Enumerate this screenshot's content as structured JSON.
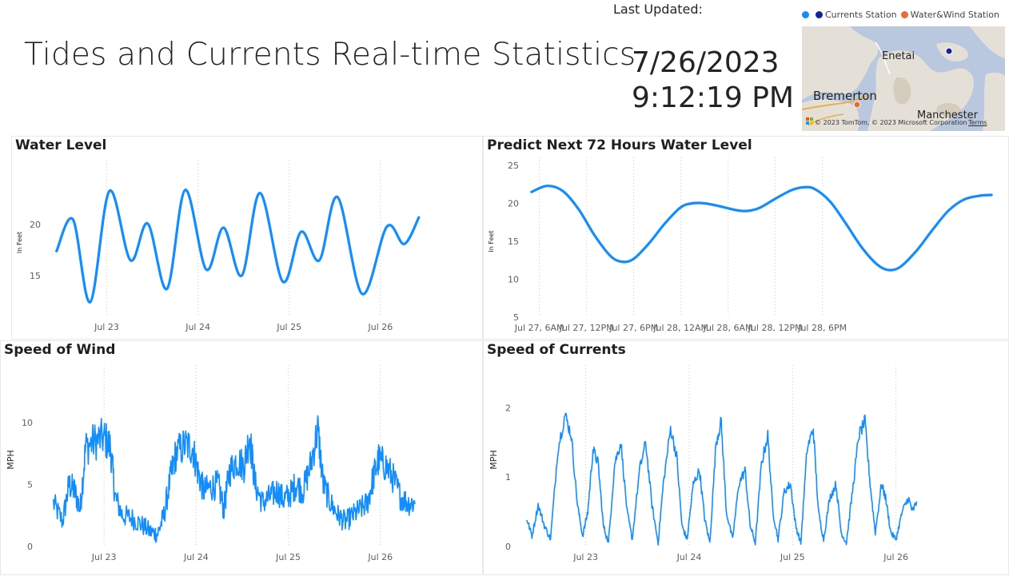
{
  "header": {
    "title": "Tides and Currents Real-time Statistics",
    "last_updated_label": "Last Updated:",
    "last_updated_date": "7/26/2023",
    "last_updated_time": "9:12:19 PM"
  },
  "map": {
    "legend": [
      {
        "label": "",
        "color": "#118dff"
      },
      {
        "label": "Currents Station",
        "color": "#12239e"
      },
      {
        "label": "Water&Wind Station",
        "color": "#e66c37"
      }
    ],
    "places": [
      "Enetai",
      "Bremerton",
      "Manchester"
    ],
    "copyright": "© 2023 TomTom, © 2023 Microsoft Corporation",
    "terms": "Terms"
  },
  "colors": {
    "series": "#118dff",
    "grid": "#c8c6c4"
  },
  "chart_data": [
    {
      "id": "water_level",
      "type": "line",
      "title": "Water Level",
      "ylabel": "In Feet",
      "ylim": [
        11,
        25.5
      ],
      "yticks": [
        15,
        20
      ],
      "xticks": [
        "Jul 23",
        "Jul 24",
        "Jul 25",
        "Jul 26"
      ],
      "x_range_days": [
        22.4,
        27.0
      ],
      "series": [
        {
          "values": [
            [
              22.45,
              17.4
            ],
            [
              22.63,
              20.5
            ],
            [
              22.82,
              12.4
            ],
            [
              23.03,
              23.3
            ],
            [
              23.26,
              16.5
            ],
            [
              23.45,
              20.1
            ],
            [
              23.66,
              13.7
            ],
            [
              23.86,
              23.4
            ],
            [
              24.09,
              15.6
            ],
            [
              24.28,
              19.7
            ],
            [
              24.48,
              15.0
            ],
            [
              24.68,
              23.1
            ],
            [
              24.93,
              14.4
            ],
            [
              25.13,
              19.3
            ],
            [
              25.33,
              16.5
            ],
            [
              25.53,
              22.7
            ],
            [
              25.8,
              13.2
            ],
            [
              26.07,
              19.8
            ],
            [
              26.26,
              18.1
            ],
            [
              26.42,
              20.7
            ]
          ]
        }
      ]
    },
    {
      "id": "predict_72h",
      "type": "line",
      "title": "Predict Next 72 Hours Water Level",
      "ylabel": "In Feet",
      "ylim": [
        5,
        25
      ],
      "yticks": [
        5,
        10,
        15,
        20,
        25
      ],
      "xticks": [
        "Jul 27, 6AM",
        "Jul 27, 12PM",
        "Jul 27, 6PM",
        "Jul 28, 12AM",
        "Jul 28, 6AM",
        "Jul 28, 12PM",
        "Jul 28, 6PM"
      ],
      "x_range_hours": [
        4,
        53
      ],
      "series": [
        {
          "values": [
            [
              5.0,
              21.5
            ],
            [
              7.0,
              22.3
            ],
            [
              9.0,
              21.6
            ],
            [
              11.0,
              19.2
            ],
            [
              13.0,
              15.8
            ],
            [
              15.0,
              13.1
            ],
            [
              16.5,
              12.3
            ],
            [
              18.0,
              12.7
            ],
            [
              20.0,
              14.8
            ],
            [
              22.0,
              17.4
            ],
            [
              24.0,
              19.5
            ],
            [
              25.5,
              20.0
            ],
            [
              27.0,
              20.0
            ],
            [
              29.0,
              19.6
            ],
            [
              31.0,
              19.1
            ],
            [
              32.5,
              19.0
            ],
            [
              34.0,
              19.4
            ],
            [
              36.0,
              20.6
            ],
            [
              38.0,
              21.7
            ],
            [
              39.5,
              22.1
            ],
            [
              41.0,
              21.9
            ],
            [
              43.0,
              20.2
            ],
            [
              45.0,
              17.3
            ],
            [
              47.0,
              14.2
            ],
            [
              49.0,
              11.9
            ],
            [
              50.5,
              11.2
            ],
            [
              52.0,
              11.7
            ],
            [
              54.0,
              13.8
            ],
            [
              56.0,
              16.5
            ],
            [
              58.0,
              19.0
            ],
            [
              60.0,
              20.5
            ],
            [
              62.0,
              21.0
            ],
            [
              63.5,
              21.1
            ]
          ]
        }
      ]
    },
    {
      "id": "speed_wind",
      "type": "line",
      "title": "Speed of Wind",
      "ylabel": "MPH",
      "ylim": [
        0,
        14
      ],
      "yticks": [
        0,
        5,
        10
      ],
      "xticks": [
        "Jul 23",
        "Jul 24",
        "Jul 25",
        "Jul 26"
      ],
      "x_range_days": [
        22.4,
        27.0
      ],
      "series": [
        {
          "values": [
            [
              22.45,
              3.5
            ],
            [
              22.55,
              2.0
            ],
            [
              22.62,
              5.0
            ],
            [
              22.68,
              4.5
            ],
            [
              22.74,
              3.0
            ],
            [
              22.8,
              8.0
            ],
            [
              22.9,
              8.5
            ],
            [
              23.0,
              8.8
            ],
            [
              23.07,
              8.0
            ],
            [
              23.12,
              4.0
            ],
            [
              23.2,
              2.5
            ],
            [
              23.3,
              2.3
            ],
            [
              23.4,
              1.8
            ],
            [
              23.5,
              1.2
            ],
            [
              23.58,
              1.0
            ],
            [
              23.65,
              2.5
            ],
            [
              23.72,
              5.5
            ],
            [
              23.78,
              7.5
            ],
            [
              23.88,
              8.2
            ],
            [
              23.96,
              8.0
            ],
            [
              24.02,
              6.0
            ],
            [
              24.08,
              4.5
            ],
            [
              24.16,
              4.8
            ],
            [
              24.24,
              5.0
            ],
            [
              24.3,
              3.0
            ],
            [
              24.36,
              6.0
            ],
            [
              24.44,
              7.0
            ],
            [
              24.52,
              6.5
            ],
            [
              24.58,
              9.0
            ],
            [
              24.64,
              5.0
            ],
            [
              24.72,
              3.5
            ],
            [
              24.8,
              4.0
            ],
            [
              24.88,
              4.5
            ],
            [
              24.95,
              3.8
            ],
            [
              25.02,
              4.2
            ],
            [
              25.08,
              5.0
            ],
            [
              25.16,
              4.5
            ],
            [
              25.24,
              6.5
            ],
            [
              25.32,
              9.5
            ],
            [
              25.38,
              5.0
            ],
            [
              25.46,
              3.5
            ],
            [
              25.54,
              2.5
            ],
            [
              25.62,
              2.0
            ],
            [
              25.7,
              2.5
            ],
            [
              25.78,
              3.0
            ],
            [
              25.86,
              3.5
            ],
            [
              25.92,
              5.5
            ],
            [
              25.98,
              7.0
            ],
            [
              26.06,
              6.5
            ],
            [
              26.14,
              5.5
            ],
            [
              26.22,
              4.0
            ],
            [
              26.3,
              3.5
            ],
            [
              26.38,
              3.5
            ]
          ]
        }
      ]
    },
    {
      "id": "speed_currents",
      "type": "line",
      "title": "Speed of Currents",
      "ylabel": "MPH",
      "ylim": [
        0,
        2.5
      ],
      "yticks": [
        0,
        1,
        2
      ],
      "xticks": [
        "Jul 23",
        "Jul 24",
        "Jul 25",
        "Jul 26"
      ],
      "x_range_days": [
        22.4,
        27.0
      ],
      "series": [
        {
          "values": [
            [
              22.43,
              0.4
            ],
            [
              22.48,
              0.15
            ],
            [
              22.54,
              0.6
            ],
            [
              22.6,
              0.3
            ],
            [
              22.66,
              0.1
            ],
            [
              22.73,
              1.4
            ],
            [
              22.8,
              1.9
            ],
            [
              22.86,
              1.6
            ],
            [
              22.92,
              0.6
            ],
            [
              22.97,
              0.15
            ],
            [
              23.02,
              0.5
            ],
            [
              23.07,
              1.4
            ],
            [
              23.12,
              1.2
            ],
            [
              23.17,
              0.3
            ],
            [
              23.22,
              0.05
            ],
            [
              23.28,
              1.2
            ],
            [
              23.34,
              1.5
            ],
            [
              23.4,
              0.5
            ],
            [
              23.45,
              0.1
            ],
            [
              23.52,
              1.1
            ],
            [
              23.58,
              1.5
            ],
            [
              23.64,
              0.6
            ],
            [
              23.7,
              0.05
            ],
            [
              23.75,
              0.9
            ],
            [
              23.82,
              1.7
            ],
            [
              23.88,
              1.3
            ],
            [
              23.93,
              0.3
            ],
            [
              23.98,
              0.1
            ],
            [
              24.04,
              0.9
            ],
            [
              24.1,
              1.1
            ],
            [
              24.15,
              0.4
            ],
            [
              24.2,
              0.05
            ],
            [
              24.26,
              1.5
            ],
            [
              24.31,
              1.8
            ],
            [
              24.36,
              0.5
            ],
            [
              24.42,
              0.1
            ],
            [
              24.48,
              0.9
            ],
            [
              24.54,
              1.1
            ],
            [
              24.59,
              0.3
            ],
            [
              24.64,
              0.05
            ],
            [
              24.7,
              1.2
            ],
            [
              24.76,
              1.6
            ],
            [
              24.81,
              0.5
            ],
            [
              24.86,
              0.1
            ],
            [
              24.92,
              0.8
            ],
            [
              24.98,
              0.9
            ],
            [
              25.03,
              0.3
            ],
            [
              25.08,
              0.05
            ],
            [
              25.14,
              1.4
            ],
            [
              25.2,
              1.7
            ],
            [
              25.25,
              0.5
            ],
            [
              25.3,
              0.1
            ],
            [
              25.36,
              0.7
            ],
            [
              25.42,
              0.9
            ],
            [
              25.47,
              0.2
            ],
            [
              25.52,
              0.05
            ],
            [
              25.58,
              0.8
            ],
            [
              25.64,
              1.6
            ],
            [
              25.7,
              1.8
            ],
            [
              25.75,
              0.9
            ],
            [
              25.8,
              0.2
            ],
            [
              25.86,
              0.9
            ],
            [
              25.9,
              0.7
            ],
            [
              25.95,
              0.2
            ],
            [
              26.0,
              0.1
            ],
            [
              26.06,
              0.5
            ],
            [
              26.12,
              0.7
            ],
            [
              26.16,
              0.5
            ],
            [
              26.2,
              0.65
            ]
          ]
        }
      ]
    }
  ]
}
